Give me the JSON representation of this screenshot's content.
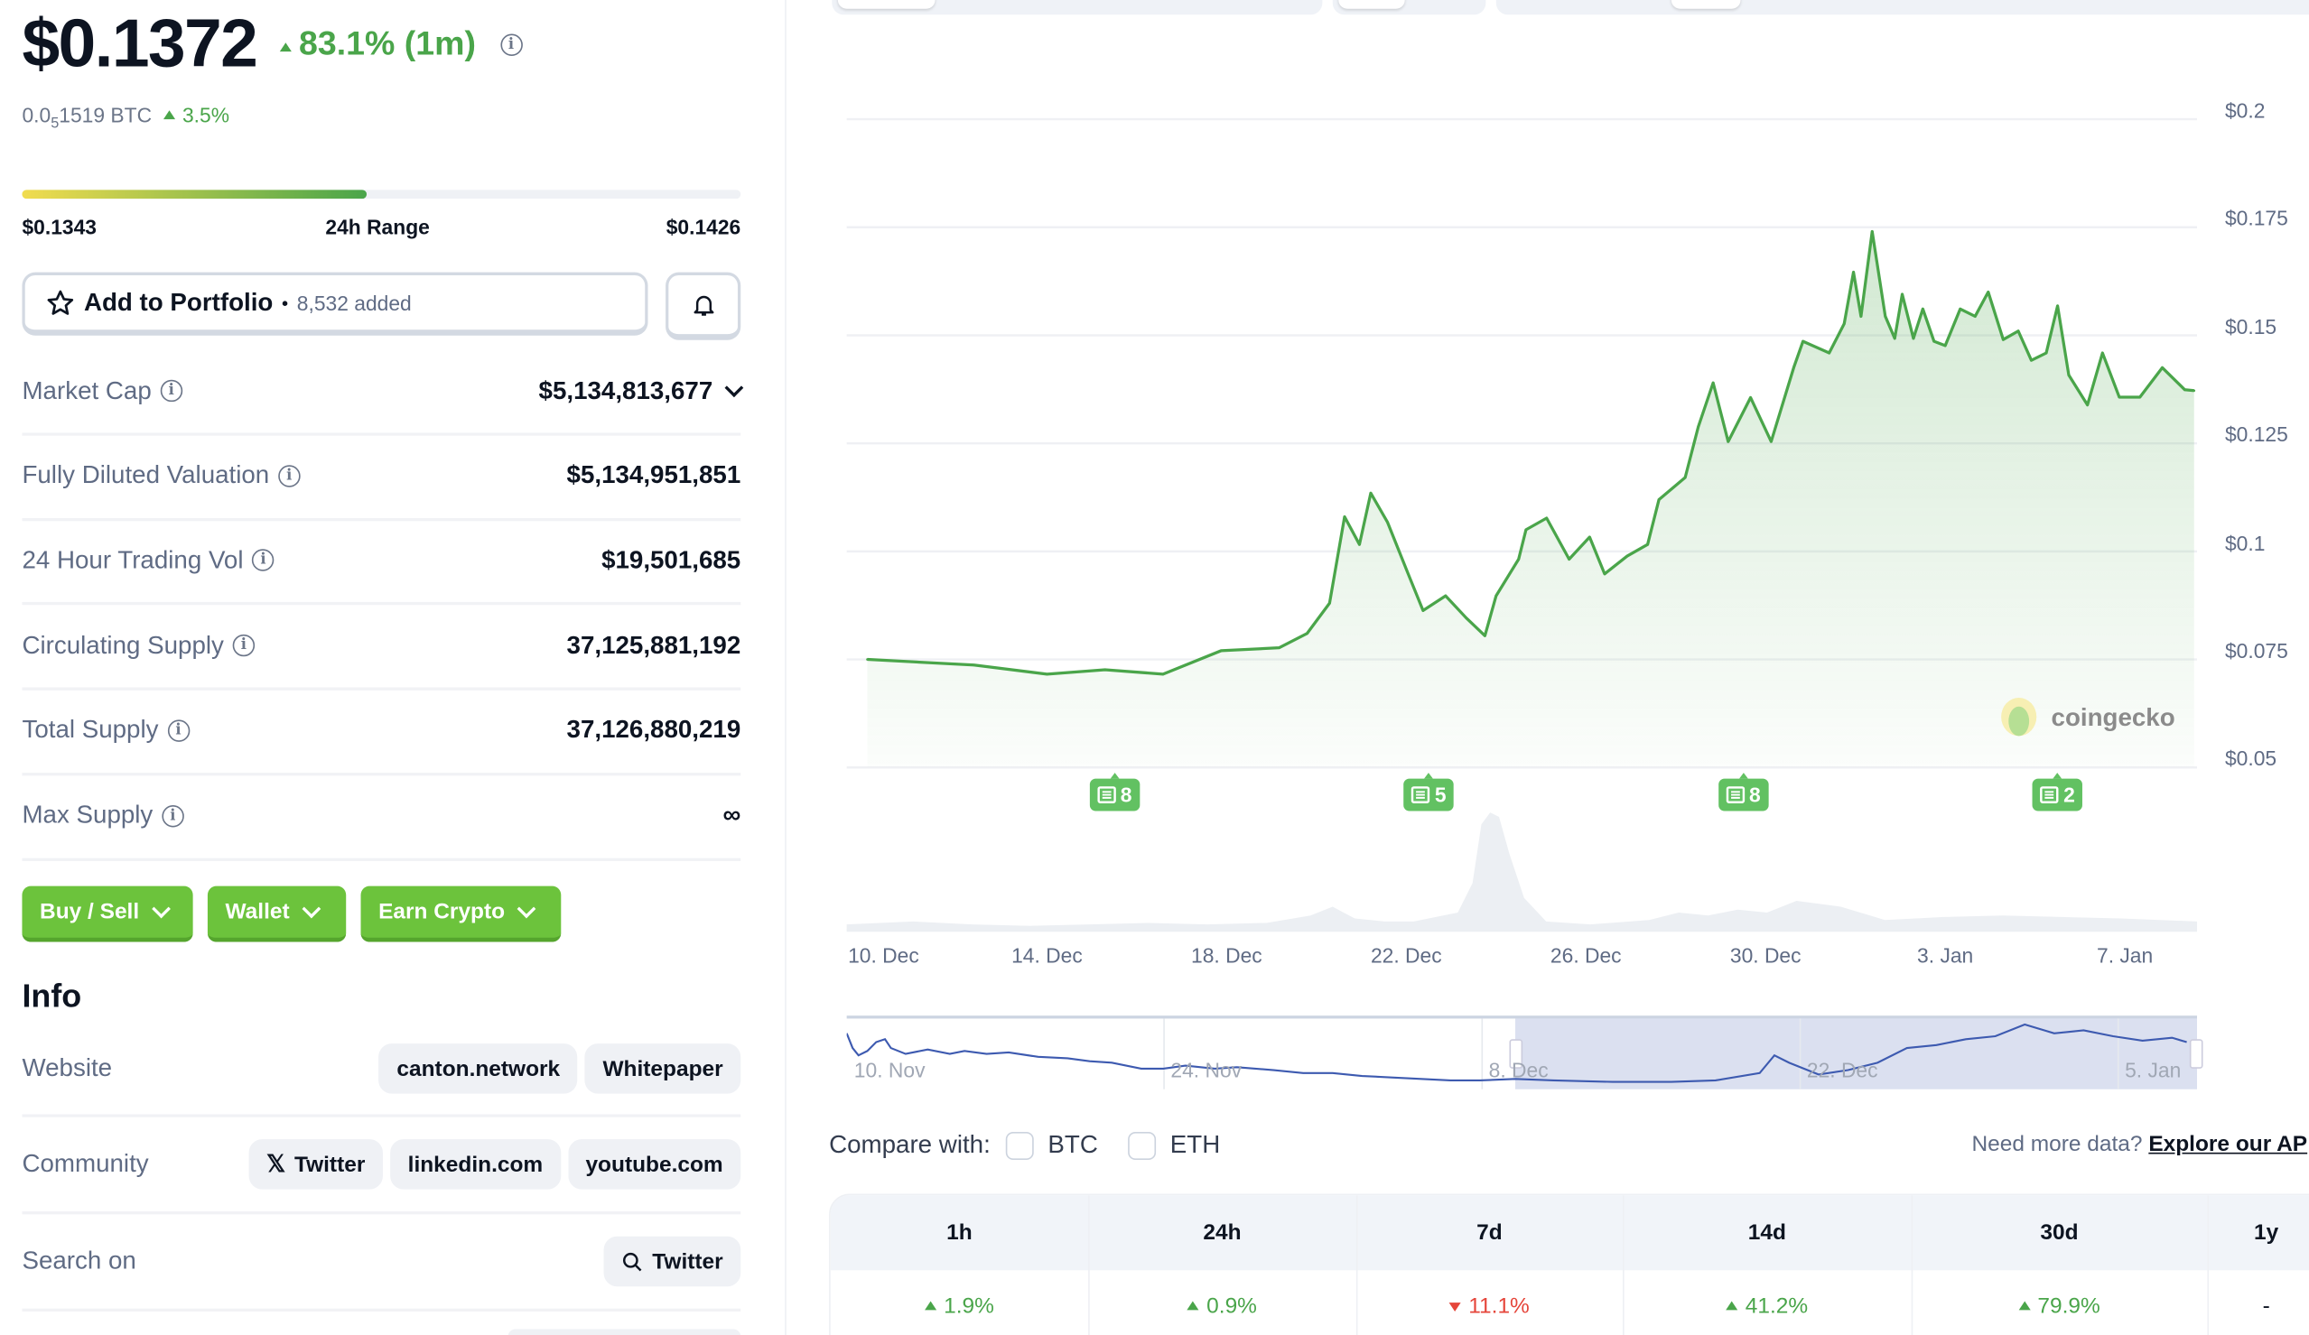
{
  "price": {
    "value": "$0.1372",
    "change": "83.1% (1m)",
    "change_direction": "up",
    "btc_prefix": "0.0",
    "btc_subscript": "5",
    "btc_rest": "1519 BTC",
    "btc_change": "3.5%"
  },
  "range_24h": {
    "low": "$0.1343",
    "label": "24h Range",
    "high": "$0.1426",
    "position_pct": 48
  },
  "portfolio": {
    "label": "Add to Portfolio",
    "separator": "•",
    "count": "8,532 added"
  },
  "stats": [
    {
      "label": "Market Cap",
      "value": "$5,134,813,677",
      "expandable": true
    },
    {
      "label": "Fully Diluted Valuation",
      "value": "$5,134,951,851"
    },
    {
      "label": "24 Hour Trading Vol",
      "value": "$19,501,685"
    },
    {
      "label": "Circulating Supply",
      "value": "37,125,881,192"
    },
    {
      "label": "Total Supply",
      "value": "37,126,880,219"
    },
    {
      "label": "Max Supply",
      "value": "∞"
    }
  ],
  "actions": {
    "buy_sell": "Buy / Sell",
    "wallet": "Wallet",
    "earn": "Earn Crypto"
  },
  "info": {
    "title": "Info",
    "website": {
      "label": "Website",
      "links": [
        "canton.network",
        "Whitepaper"
      ]
    },
    "community": {
      "label": "Community",
      "links": [
        "Twitter",
        "linkedin.com",
        "youtube.com"
      ]
    },
    "search": {
      "label": "Search on",
      "links": [
        "Twitter"
      ]
    }
  },
  "colors": {
    "up": "#4aa54a",
    "down": "#e5453a",
    "line": "#4aa54a",
    "button": "#6cc33c",
    "navigator_line": "#3d5ab0"
  },
  "chart_data": {
    "type": "area",
    "ylim": [
      0.05,
      0.2
    ],
    "y_ticks": [
      "$0.05",
      "$0.075",
      "$0.1",
      "$0.125",
      "$0.15",
      "$0.175",
      "$0.2"
    ],
    "y_tick_values": [
      0.05,
      0.075,
      0.1,
      0.125,
      0.15,
      0.175,
      0.2
    ],
    "x_ticks": [
      "10. Dec",
      "14. Dec",
      "18. Dec",
      "22. Dec",
      "26. Dec",
      "30. Dec",
      "3. Jan",
      "7. Jan"
    ],
    "grid": true,
    "watermark": "coingecko",
    "series": [
      {
        "x": [
          "Dec 10 00:00",
          "Dec 12 09:00",
          "Dec 14 00:00",
          "Dec 15 07:00",
          "Dec 16 14:00",
          "Dec 17 21:00",
          "Dec 19 04:00",
          "Dec 19 19:00",
          "Dec 20 07:00",
          "Dec 20 15:00",
          "Dec 20 23:00",
          "Dec 21 05:00",
          "Dec 21 14:00",
          "Dec 22 01:00",
          "Dec 22 09:00",
          "Dec 22 21:00",
          "Dec 23 08:00",
          "Dec 23 18:00",
          "Dec 24 00:00",
          "Dec 24 12:00",
          "Dec 24 16:00",
          "Dec 25 03:00",
          "Dec 25 15:00",
          "Dec 26 02:00",
          "Dec 26 10:00",
          "Dec 26 22:00",
          "Dec 27 09:00",
          "Dec 27 15:00",
          "Dec 28 05:00",
          "Dec 28 12:00",
          "Dec 28 20:00",
          "Dec 29 04:00",
          "Dec 29 16:00",
          "Dec 30 03:00",
          "Dec 30 15:00",
          "Dec 30 20:00",
          "Dec 31 10:00",
          "Dec 31 18:00",
          "Dec 31 23:00",
          "Jan 1 03:00",
          "Jan 1 09:00",
          "Jan 1 16:00",
          "Jan 1 21:00",
          "Jan 2 01:00",
          "Jan 2 07:00",
          "Jan 2 12:00",
          "Jan 2 18:00",
          "Jan 3 00:00",
          "Jan 3 08:00",
          "Jan 3 16:00",
          "Jan 3 23:00",
          "Jan 4 07:00",
          "Jan 4 15:00",
          "Jan 4 22:00",
          "Jan 5 06:00",
          "Jan 5 12:00",
          "Jan 5 18:00",
          "Jan 6 04:00",
          "Jan 6 12:00",
          "Jan 6 21:00",
          "Jan 7 08:00",
          "Jan 7 20:00",
          "Jan 8 08:00",
          "Jan 8 13:00"
        ],
        "y": [
          0.075,
          0.0737,
          0.0716,
          0.0726,
          0.0716,
          0.077,
          0.0777,
          0.081,
          0.088,
          0.108,
          0.1016,
          0.1135,
          0.1067,
          0.0948,
          0.0863,
          0.0897,
          0.0846,
          0.0805,
          0.0897,
          0.0982,
          0.105,
          0.1077,
          0.0982,
          0.1033,
          0.0948,
          0.0989,
          0.1016,
          0.112,
          0.1171,
          0.1288,
          0.139,
          0.1254,
          0.1356,
          0.1254,
          0.1425,
          0.1486,
          0.1459,
          0.1527,
          0.1646,
          0.1544,
          0.174,
          0.1544,
          0.1493,
          0.1595,
          0.1493,
          0.1561,
          0.1486,
          0.1476,
          0.1561,
          0.1544,
          0.16,
          0.149,
          0.151,
          0.1442,
          0.1459,
          0.1568,
          0.1408,
          0.1339,
          0.1459,
          0.1357,
          0.1357,
          0.1425,
          0.1374,
          0.1372
        ]
      }
    ],
    "news_markers": [
      {
        "date": "Dec 15",
        "count": "8"
      },
      {
        "date": "Dec 22",
        "count": "5"
      },
      {
        "date": "Dec 29",
        "count": "8"
      },
      {
        "date": "Jan 5",
        "count": "2"
      }
    ]
  },
  "navigator": {
    "labels": [
      "10. Nov",
      "24. Nov",
      "8. Dec",
      "22. Dec",
      "5. Jan"
    ]
  },
  "compare": {
    "label": "Compare with:",
    "options": [
      "BTC",
      "ETH"
    ]
  },
  "api": {
    "text": "Need more data?",
    "link": "Explore our AP"
  },
  "performance": {
    "headers": [
      "1h",
      "24h",
      "7d",
      "14d",
      "30d",
      "1y"
    ],
    "values": [
      {
        "text": "1.9%",
        "dir": "up"
      },
      {
        "text": "0.9%",
        "dir": "up"
      },
      {
        "text": "11.1%",
        "dir": "down"
      },
      {
        "text": "41.2%",
        "dir": "up"
      },
      {
        "text": "79.9%",
        "dir": "up"
      },
      {
        "text": "-",
        "dir": "none"
      }
    ]
  }
}
